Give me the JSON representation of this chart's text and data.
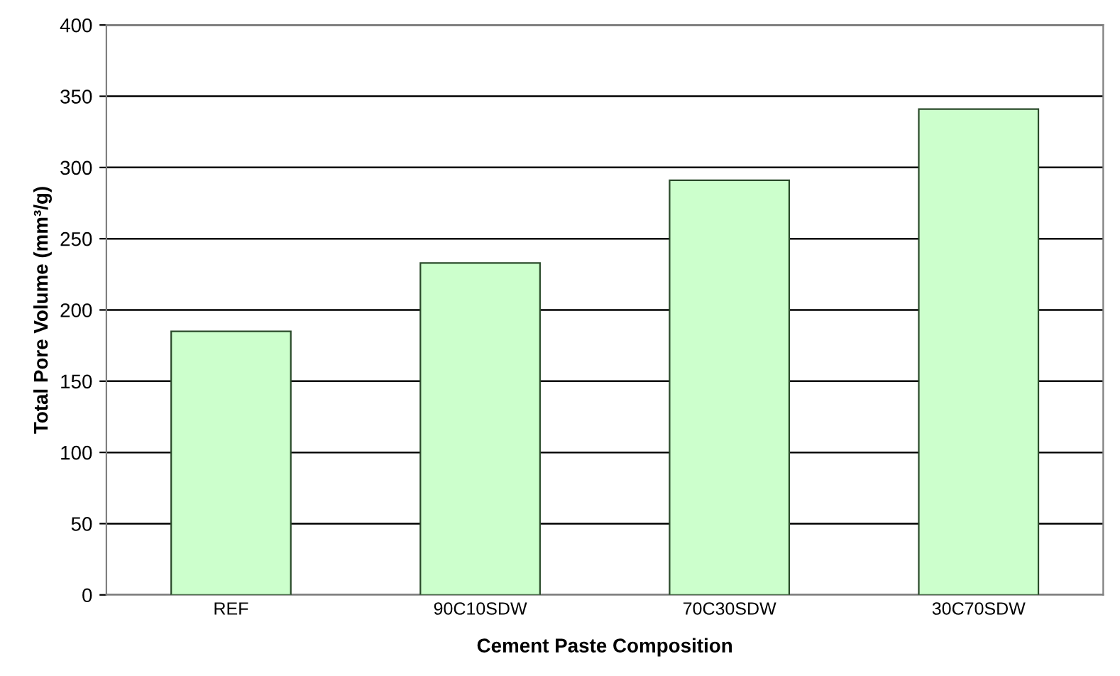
{
  "chart_data": {
    "type": "bar",
    "xlabel": "Cement Paste Composition",
    "ylabel": "Total Pore Volume (mm³/g)",
    "categories": [
      "REF",
      "90C10SDW",
      "70C30SDW",
      "30C70SDW"
    ],
    "values": [
      185,
      233,
      291,
      341
    ],
    "color": "#ccffcc",
    "ylim": [
      0,
      400
    ],
    "yticks": [
      0,
      50,
      100,
      150,
      200,
      250,
      300,
      350,
      400
    ],
    "grid": "y",
    "legend": false
  }
}
